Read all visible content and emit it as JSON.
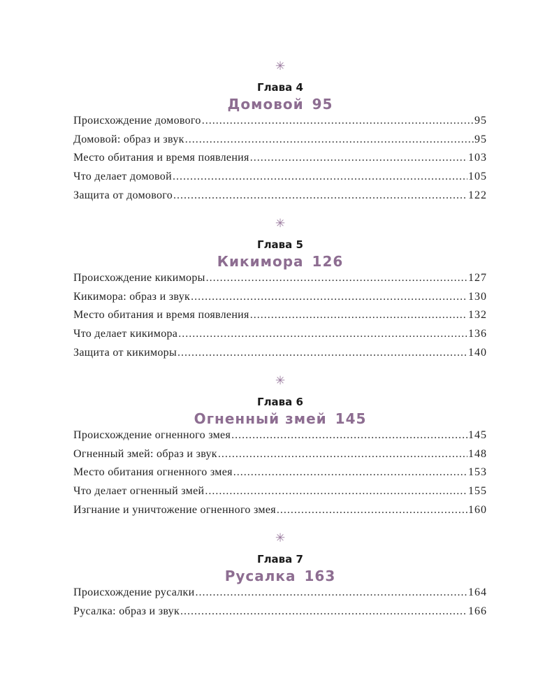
{
  "ornament_icon": "asterisk-ornament",
  "colors": {
    "accent": "#8d6d91",
    "text": "#222222"
  },
  "chapters": [
    {
      "label": "Глава 4",
      "title": "Домовой",
      "page": "95",
      "entries": [
        {
          "title": "Происхождение домового",
          "page": "95"
        },
        {
          "title": "Домовой: образ и звук",
          "page": "95"
        },
        {
          "title": "Место обитания и время появления",
          "page": "103"
        },
        {
          "title": "Что делает домовой",
          "page": "105"
        },
        {
          "title": "Защита от домового",
          "page": "122"
        }
      ]
    },
    {
      "label": "Глава 5",
      "title": "Кикимора",
      "page": "126",
      "entries": [
        {
          "title": "Происхождение кикиморы",
          "page": "127"
        },
        {
          "title": "Кикимора: образ и звук",
          "page": "130"
        },
        {
          "title": "Место обитания и время появления",
          "page": "132"
        },
        {
          "title": "Что делает кикимора",
          "page": "136"
        },
        {
          "title": "Защита от кикиморы",
          "page": "140"
        }
      ]
    },
    {
      "label": "Глава 6",
      "title": "Огненный змей",
      "page": "145",
      "entries": [
        {
          "title": "Происхождение огненного змея",
          "page": "145"
        },
        {
          "title": "Огненный змей: образ и звук",
          "page": "148"
        },
        {
          "title": "Место обитания огненного змея",
          "page": "153"
        },
        {
          "title": "Что делает огненный змей",
          "page": "155"
        },
        {
          "title": "Изгнание и уничтожение огненного змея",
          "page": "160"
        }
      ]
    },
    {
      "label": "Глава 7",
      "title": "Русалка",
      "page": "163",
      "entries": [
        {
          "title": "Происхождение русалки",
          "page": "164"
        },
        {
          "title": "Русалка: образ и звук",
          "page": "166"
        }
      ]
    }
  ]
}
